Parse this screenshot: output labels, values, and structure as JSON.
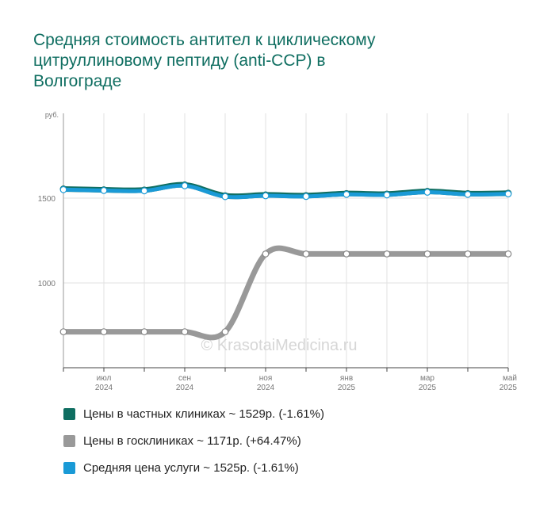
{
  "title_lines": [
    "Средняя стоимость антител к циклическому",
    "цитруллиновому пептиду (anti-CCP) в",
    "Волгограде"
  ],
  "watermark": "© KrasotaiMedicina.ru",
  "legend": [
    {
      "label": "Цены в частных клиниках ~ 1529р. (-1.61%)",
      "color": "#0f6e61"
    },
    {
      "label": "Цены в госклиниках ~ 1171р. (+64.47%)",
      "color": "#999999"
    },
    {
      "label": "Средняя цена услуги ~ 1525р. (-1.61%)",
      "color": "#1a9ad6"
    }
  ],
  "chart_data": {
    "type": "line",
    "y_unit": "руб.",
    "y_ticks": [
      "1500",
      "1000"
    ],
    "ylim": [
      500,
      2000
    ],
    "x_ticks": [
      {
        "month": "июл",
        "year": "2024"
      },
      {
        "month": "сен",
        "year": "2024"
      },
      {
        "month": "ноя",
        "year": "2024"
      },
      {
        "month": "янв",
        "year": "2025"
      },
      {
        "month": "мар",
        "year": "2025"
      },
      {
        "month": "май",
        "year": "2025"
      }
    ],
    "x": [
      "2024-06",
      "2024-07",
      "2024-08",
      "2024-09",
      "2024-10",
      "2024-11",
      "2024-12",
      "2025-01",
      "2025-02",
      "2025-03",
      "2025-04",
      "2025-05"
    ],
    "grid": true,
    "legend_position": "bottom",
    "series": [
      {
        "name": "Цены в частных клиниках",
        "color": "#0f6e61",
        "values": [
          1554,
          1549,
          1548,
          1578,
          1514,
          1519,
          1515,
          1527,
          1524,
          1540,
          1527,
          1529
        ]
      },
      {
        "name": "Цены в госклиниках",
        "color": "#999999",
        "values": [
          712,
          712,
          712,
          712,
          712,
          1171,
          1171,
          1171,
          1171,
          1171,
          1171,
          1171
        ]
      },
      {
        "name": "Средняя цена услуги",
        "color": "#1a9ad6",
        "values": [
          1550,
          1545,
          1543,
          1573,
          1509,
          1514,
          1510,
          1522,
          1519,
          1535,
          1522,
          1525
        ]
      }
    ]
  }
}
